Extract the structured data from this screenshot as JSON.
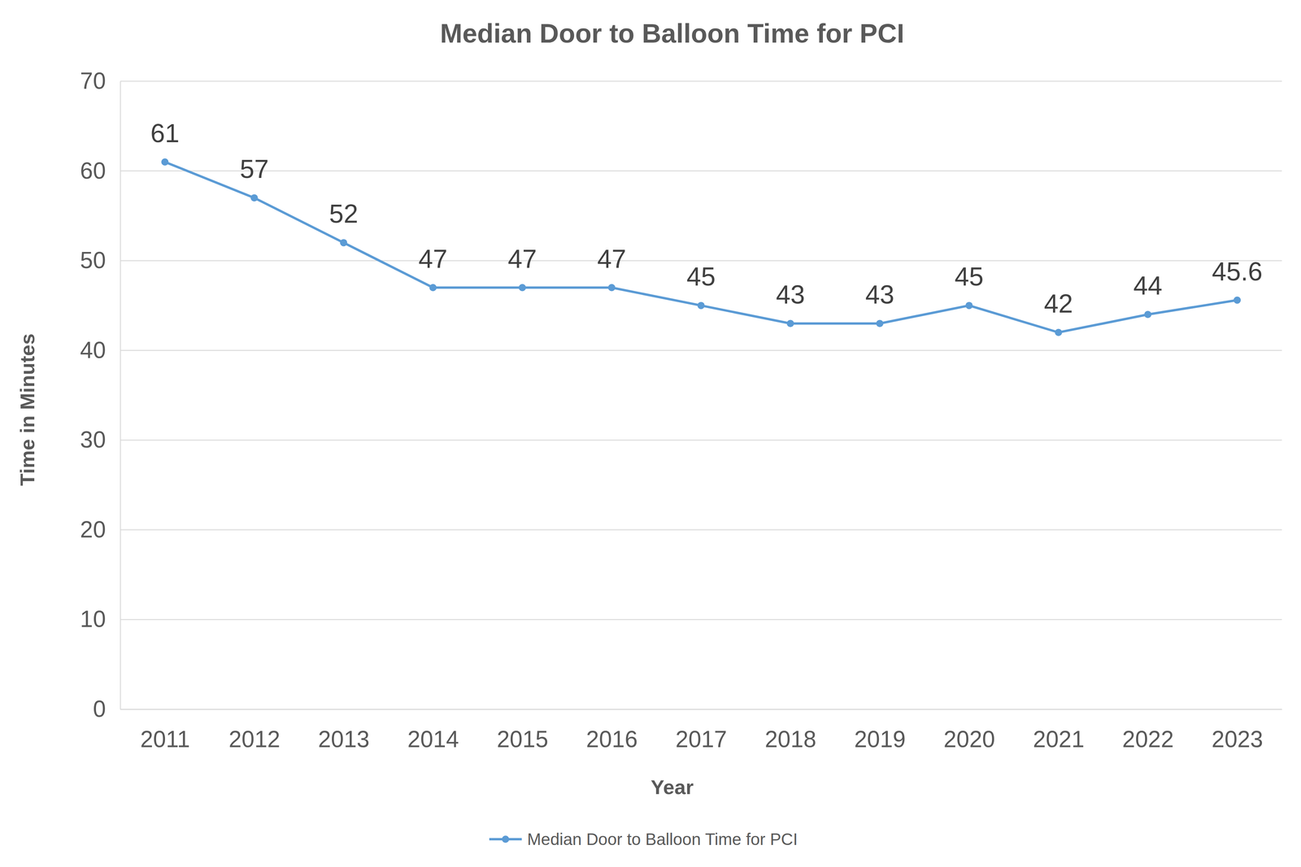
{
  "chart_data": {
    "type": "line",
    "title": "Median Door to Balloon Time for PCI",
    "x_label": "Year",
    "y_label": "Time in Minutes",
    "categories": [
      "2011",
      "2012",
      "2013",
      "2014",
      "2015",
      "2016",
      "2017",
      "2018",
      "2019",
      "2020",
      "2021",
      "2022",
      "2023"
    ],
    "series": [
      {
        "name": "Median Door to Balloon Time for PCI",
        "color": "#5b9bd5",
        "marker": "circle",
        "line_style": "solid",
        "values": [
          61,
          57,
          52,
          47,
          47,
          47,
          45,
          43,
          43,
          45,
          42,
          44,
          45.6
        ]
      }
    ],
    "ylim": [
      0,
      70
    ],
    "yticks": [
      0,
      10,
      20,
      30,
      40,
      50,
      60,
      70
    ],
    "grid": true,
    "data_labels": true,
    "legend": "bottom"
  }
}
